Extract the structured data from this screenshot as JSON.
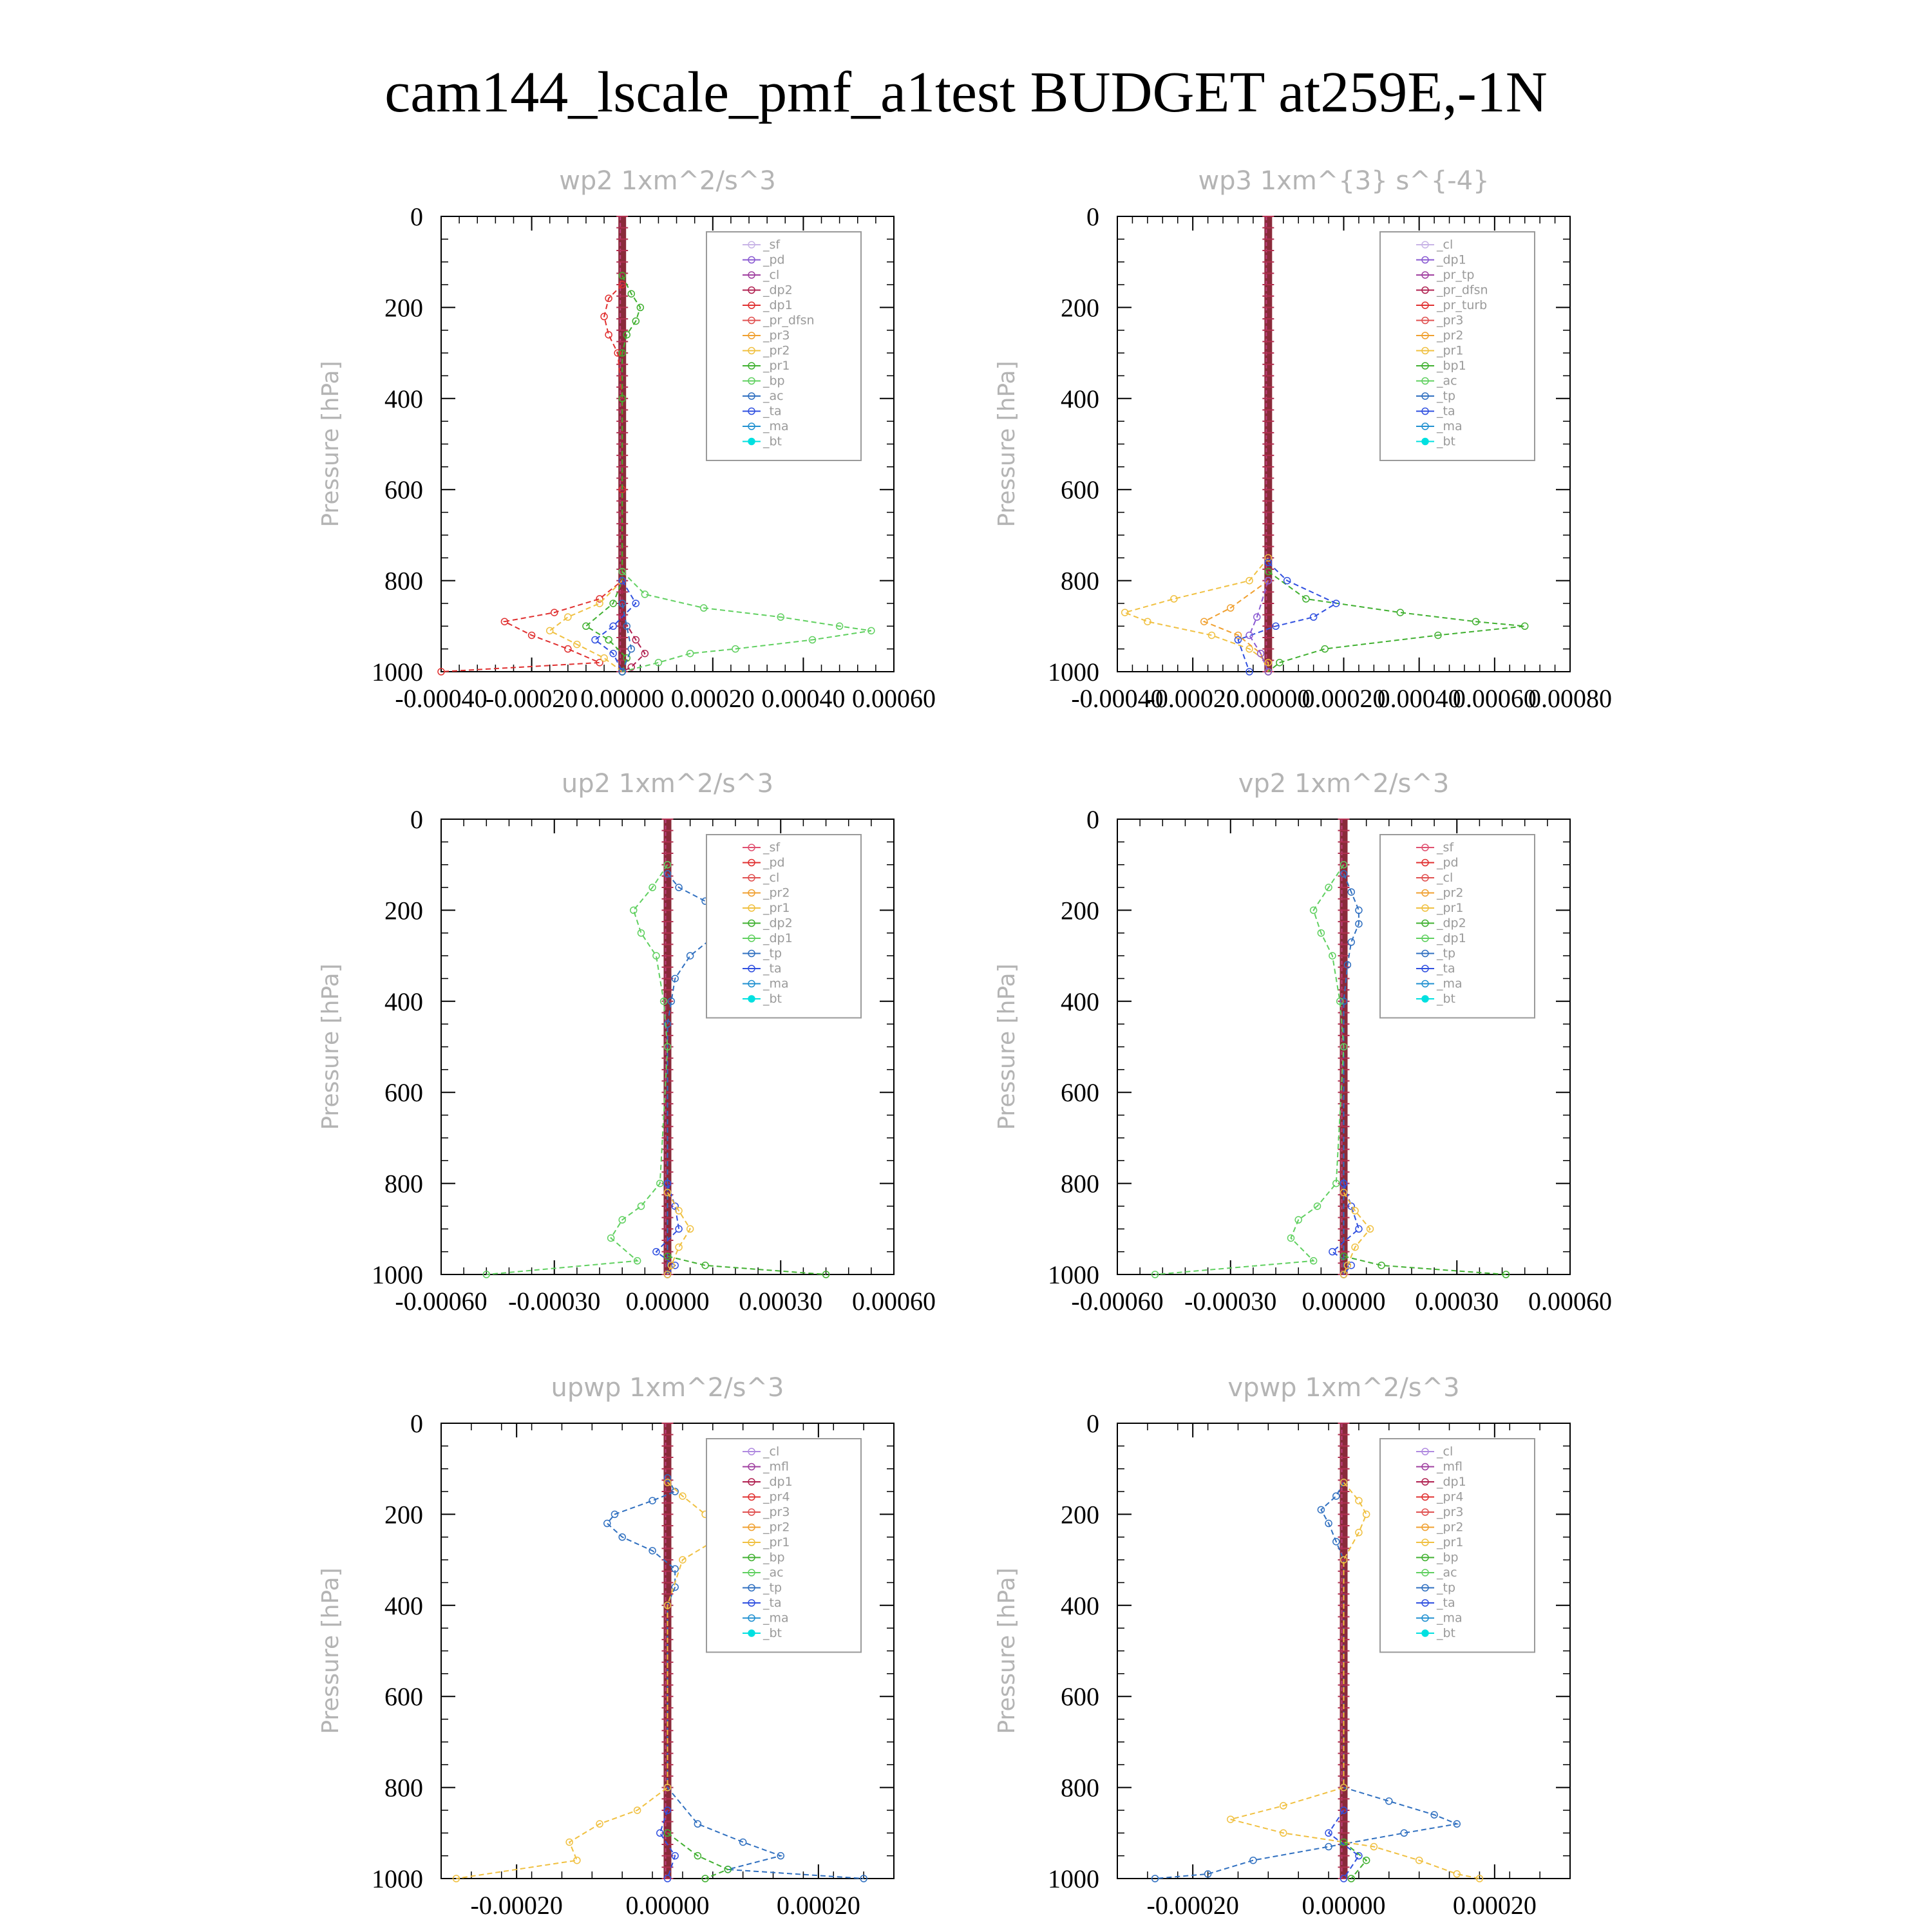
{
  "title": "cam144_lscale_pmf_a1test  BUDGET at259E,-1N",
  "chart_data": [
    {
      "type": "line",
      "title": "wp2   1xm^2/s^3",
      "ylabel": "Pressure [hPa]",
      "ylim": [
        1000,
        0
      ],
      "y_ticks": [
        0,
        200,
        400,
        600,
        800,
        1000
      ],
      "xlim": [
        -0.0004,
        0.0006
      ],
      "x_ticks": [
        -0.0004,
        -0.0002,
        0.0,
        0.0002,
        0.0004,
        0.0006
      ],
      "x_tick_labels": [
        "-0.00040",
        "-0.00020",
        "0.00000",
        "0.00020",
        "0.00040",
        "0.00060"
      ],
      "legend": [
        "_sf",
        "_pd",
        "_cl",
        "_dp2",
        "_dp1",
        "_pr_dfsn",
        "_pr3",
        "_pr2",
        "_pr1",
        "_bp",
        "_ac",
        "_ta",
        "_ma",
        "_bt"
      ],
      "legend_colors": [
        "#c8b4e6",
        "#8a5ad2",
        "#a040a0",
        "#b02050",
        "#e03030",
        "#e05050",
        "#f0a030",
        "#f0c040",
        "#40b030",
        "#60d060",
        "#3070c0",
        "#3050e0",
        "#2090d0",
        "#00e0e0"
      ],
      "series": [
        {
          "name": "_dp1",
          "pressure": [
            150,
            180,
            220,
            260,
            300,
            400,
            600,
            800,
            840,
            870,
            890,
            920,
            950,
            980,
            1000
          ],
          "values": [
            0,
            -3e-05,
            -4e-05,
            -3e-05,
            -1e-05,
            0,
            0,
            0,
            -5e-05,
            -0.00015,
            -0.00026,
            -0.0002,
            -0.00012,
            -5e-05,
            -0.0004
          ]
        },
        {
          "name": "_dp2",
          "pressure": [
            800,
            880,
            930,
            960,
            990,
            1000
          ],
          "values": [
            0,
            0,
            3e-05,
            5e-05,
            2e-05,
            0
          ]
        },
        {
          "name": "_pr1",
          "pressure": [
            130,
            170,
            200,
            230,
            260,
            300,
            400,
            800,
            850,
            900,
            930,
            970,
            1000
          ],
          "values": [
            0,
            2e-05,
            4e-05,
            3e-05,
            1e-05,
            0,
            0,
            0,
            -2e-05,
            -8e-05,
            -3e-05,
            1e-05,
            0
          ]
        },
        {
          "name": "_pr2",
          "pressure": [
            800,
            850,
            880,
            910,
            940,
            970,
            1000
          ],
          "values": [
            0,
            -5e-05,
            -0.00012,
            -0.00016,
            -0.0001,
            -4e-05,
            0
          ]
        },
        {
          "name": "_bp",
          "pressure": [
            780,
            830,
            860,
            880,
            900,
            910,
            930,
            950,
            960,
            980,
            1000
          ],
          "values": [
            0,
            5e-05,
            0.00018,
            0.00035,
            0.00048,
            0.00055,
            0.00042,
            0.00025,
            0.00015,
            8e-05,
            0
          ]
        },
        {
          "name": "_ta",
          "pressure": [
            800,
            850,
            900,
            930,
            960,
            1000
          ],
          "values": [
            0,
            3e-05,
            -2e-05,
            -6e-05,
            -2e-05,
            0
          ]
        },
        {
          "name": "_ac",
          "pressure": [
            850,
            900,
            950,
            1000
          ],
          "values": [
            0,
            1e-05,
            2e-05,
            0
          ]
        }
      ]
    },
    {
      "type": "line",
      "title": "wp3   1xm^{3} s^{-4}",
      "ylabel": "Pressure [hPa]",
      "ylim": [
        1000,
        0
      ],
      "y_ticks": [
        0,
        200,
        400,
        600,
        800,
        1000
      ],
      "xlim": [
        -0.0004,
        0.0008
      ],
      "x_ticks": [
        -0.0004,
        -0.0002,
        0.0,
        0.0002,
        0.0004,
        0.0006,
        0.0008
      ],
      "x_tick_labels": [
        "-0.00040",
        "-0.00020",
        "0.00000",
        "0.00020",
        "0.00040",
        "0.00060",
        "0.00080"
      ],
      "legend": [
        "_cl",
        "_dp1",
        "_pr_tp",
        "_pr_dfsn",
        "_pr_turb",
        "_pr3",
        "_pr2",
        "_pr1",
        "_bp1",
        "_ac",
        "_tp",
        "_ta",
        "_ma",
        "_bt"
      ],
      "legend_colors": [
        "#c8b4e6",
        "#8a5ad2",
        "#a040a0",
        "#b02050",
        "#e03030",
        "#e05050",
        "#f0a030",
        "#f0c040",
        "#40b030",
        "#60d060",
        "#3070c0",
        "#3050e0",
        "#2090d0",
        "#00e0e0"
      ],
      "series": [
        {
          "name": "_pr1",
          "pressure": [
            750,
            800,
            840,
            870,
            890,
            920,
            950,
            980,
            1000
          ],
          "values": [
            0,
            -5e-05,
            -0.00025,
            -0.00038,
            -0.00032,
            -0.00015,
            -5e-05,
            0,
            0
          ]
        },
        {
          "name": "_pr2",
          "pressure": [
            800,
            860,
            890,
            920,
            960,
            1000
          ],
          "values": [
            0,
            -0.0001,
            -0.00017,
            -8e-05,
            -2e-05,
            0
          ]
        },
        {
          "name": "_bp1",
          "pressure": [
            780,
            840,
            870,
            890,
            900,
            920,
            950,
            980,
            1000
          ],
          "values": [
            0,
            0.0001,
            0.00035,
            0.00055,
            0.00068,
            0.00045,
            0.00015,
            3e-05,
            0
          ]
        },
        {
          "name": "_ta",
          "pressure": [
            760,
            800,
            850,
            880,
            900,
            930,
            1000
          ],
          "values": [
            0,
            5e-05,
            0.00018,
            0.00012,
            2e-05,
            -8e-05,
            -5e-05
          ]
        },
        {
          "name": "_dp1",
          "pressure": [
            800,
            880,
            920,
            960,
            1000
          ],
          "values": [
            0,
            -3e-05,
            -5e-05,
            -2e-05,
            0
          ]
        }
      ]
    },
    {
      "type": "line",
      "title": "up2   1xm^2/s^3",
      "ylabel": "Pressure [hPa]",
      "ylim": [
        1000,
        0
      ],
      "y_ticks": [
        0,
        200,
        400,
        600,
        800,
        1000
      ],
      "xlim": [
        -0.0006,
        0.0006
      ],
      "x_ticks": [
        -0.0006,
        -0.0003,
        0.0,
        0.0003,
        0.0006
      ],
      "x_tick_labels": [
        "-0.00060",
        "-0.00030",
        "0.00000",
        "0.00030",
        "0.00060"
      ],
      "legend": [
        "_sf",
        "_pd",
        "_cl",
        "_pr2",
        "_pr1",
        "_dp2",
        "_dp1",
        "_tp",
        "_ta",
        "_ma",
        "_bt"
      ],
      "legend_colors": [
        "#e05070",
        "#e03030",
        "#e05050",
        "#f0a030",
        "#f0c040",
        "#40b030",
        "#60d060",
        "#3070c0",
        "#3050e0",
        "#2090d0",
        "#00e0e0"
      ],
      "series": [
        {
          "name": "_tp",
          "pressure": [
            120,
            150,
            180,
            200,
            230,
            260,
            300,
            350,
            400,
            450,
            800,
            1000
          ],
          "values": [
            0,
            3e-05,
            0.0001,
            0.00016,
            0.00015,
            0.00012,
            6e-05,
            2e-05,
            1e-05,
            0,
            0,
            0
          ]
        },
        {
          "name": "_dp1",
          "pressure": [
            100,
            150,
            200,
            250,
            300,
            400,
            500,
            800,
            850,
            880,
            920,
            970,
            1000
          ],
          "values": [
            0,
            -4e-05,
            -9e-05,
            -7e-05,
            -3e-05,
            -1e-05,
            0,
            -2e-05,
            -7e-05,
            -0.00012,
            -0.00015,
            -8e-05,
            -0.00048
          ]
        },
        {
          "name": "_ta",
          "pressure": [
            800,
            850,
            900,
            950,
            980,
            1000
          ],
          "values": [
            0,
            2e-05,
            3e-05,
            -3e-05,
            2e-05,
            0
          ]
        },
        {
          "name": "_pr1",
          "pressure": [
            820,
            860,
            900,
            940,
            980,
            1000
          ],
          "values": [
            0,
            3e-05,
            6e-05,
            3e-05,
            1e-05,
            0
          ]
        },
        {
          "name": "_dp2",
          "pressure": [
            960,
            980,
            1000
          ],
          "values": [
            0,
            0.0001,
            0.00042
          ]
        }
      ]
    },
    {
      "type": "line",
      "title": "vp2   1xm^2/s^3",
      "ylabel": "Pressure [hPa]",
      "ylim": [
        1000,
        0
      ],
      "y_ticks": [
        0,
        200,
        400,
        600,
        800,
        1000
      ],
      "xlim": [
        -0.0006,
        0.0006
      ],
      "x_ticks": [
        -0.0006,
        -0.0003,
        0.0,
        0.0003,
        0.0006
      ],
      "x_tick_labels": [
        "-0.00060",
        "-0.00030",
        "0.00000",
        "0.00030",
        "0.00060"
      ],
      "legend": [
        "_sf",
        "_pd",
        "_cl",
        "_pr2",
        "_pr1",
        "_dp2",
        "_dp1",
        "_tp",
        "_ta",
        "_ma",
        "_bt"
      ],
      "legend_colors": [
        "#e05070",
        "#e03030",
        "#e05050",
        "#f0a030",
        "#f0c040",
        "#40b030",
        "#60d060",
        "#3070c0",
        "#3050e0",
        "#2090d0",
        "#00e0e0"
      ],
      "series": [
        {
          "name": "_tp",
          "pressure": [
            120,
            160,
            200,
            230,
            270,
            320,
            400,
            800,
            1000
          ],
          "values": [
            0,
            2e-05,
            4e-05,
            4e-05,
            2e-05,
            1e-05,
            0,
            0,
            0
          ]
        },
        {
          "name": "_dp1",
          "pressure": [
            100,
            150,
            200,
            250,
            300,
            400,
            500,
            800,
            850,
            880,
            920,
            970,
            1000
          ],
          "values": [
            0,
            -4e-05,
            -8e-05,
            -6e-05,
            -3e-05,
            -1e-05,
            0,
            -2e-05,
            -7e-05,
            -0.00012,
            -0.00014,
            -8e-05,
            -0.0005
          ]
        },
        {
          "name": "_ta",
          "pressure": [
            800,
            850,
            900,
            950,
            980,
            1000
          ],
          "values": [
            0,
            2e-05,
            4e-05,
            -3e-05,
            2e-05,
            0
          ]
        },
        {
          "name": "_pr1",
          "pressure": [
            820,
            860,
            900,
            940,
            980,
            1000
          ],
          "values": [
            0,
            3e-05,
            7e-05,
            3e-05,
            1e-05,
            0
          ]
        },
        {
          "name": "_dp2",
          "pressure": [
            960,
            980,
            1000
          ],
          "values": [
            0,
            0.0001,
            0.00043
          ]
        }
      ]
    },
    {
      "type": "line",
      "title": "upwp   1xm^2/s^3",
      "ylabel": "Pressure [hPa]",
      "ylim": [
        1000,
        0
      ],
      "y_ticks": [
        0,
        200,
        400,
        600,
        800,
        1000
      ],
      "xlim": [
        -0.0003,
        0.0003
      ],
      "x_ticks": [
        -0.0002,
        0.0,
        0.0002
      ],
      "x_tick_labels": [
        "-0.00020",
        "0.00000",
        "0.00020"
      ],
      "legend": [
        "_cl",
        "_mfl",
        "_dp1",
        "_pr4",
        "_pr3",
        "_pr2",
        "_pr1",
        "_bp",
        "_ac",
        "_tp",
        "_ta",
        "_ma",
        "_bt"
      ],
      "legend_colors": [
        "#b08ae0",
        "#a040a0",
        "#b02050",
        "#e03030",
        "#e05050",
        "#f0a030",
        "#f0c040",
        "#40b030",
        "#60d060",
        "#3070c0",
        "#3050e0",
        "#2090d0",
        "#00e0e0"
      ],
      "series": [
        {
          "name": "_tp",
          "pressure": [
            120,
            150,
            170,
            200,
            220,
            250,
            280,
            320,
            360,
            400,
            800,
            880,
            920,
            950,
            980,
            1000
          ],
          "values": [
            0,
            1e-05,
            -2e-05,
            -7e-05,
            -8e-05,
            -6e-05,
            -2e-05,
            1e-05,
            1e-05,
            0,
            0,
            4e-05,
            0.0001,
            0.00015,
            8e-05,
            0.00026
          ]
        },
        {
          "name": "_pr1",
          "pressure": [
            130,
            160,
            200,
            230,
            260,
            300,
            400,
            800,
            850,
            880,
            920,
            960,
            1000
          ],
          "values": [
            0,
            2e-05,
            5e-05,
            7e-05,
            6e-05,
            2e-05,
            0,
            0,
            -4e-05,
            -9e-05,
            -0.00013,
            -0.00012,
            -0.00028
          ]
        },
        {
          "name": "_bp",
          "pressure": [
            900,
            950,
            980,
            1000
          ],
          "values": [
            0,
            4e-05,
            8e-05,
            5e-05
          ]
        },
        {
          "name": "_ta",
          "pressure": [
            850,
            900,
            950,
            1000
          ],
          "values": [
            0,
            -1e-05,
            1e-05,
            0
          ]
        }
      ]
    },
    {
      "type": "line",
      "title": "vpwp   1xm^2/s^3",
      "ylabel": "Pressure [hPa]",
      "ylim": [
        1000,
        0
      ],
      "y_ticks": [
        0,
        200,
        400,
        600,
        800,
        1000
      ],
      "xlim": [
        -0.0003,
        0.0003
      ],
      "x_ticks": [
        -0.0002,
        0.0,
        0.0002
      ],
      "x_tick_labels": [
        "-0.00020",
        "0.00000",
        "0.00020"
      ],
      "legend": [
        "_cl",
        "_mfl",
        "_dp1",
        "_pr4",
        "_pr3",
        "_pr2",
        "_pr1",
        "_bp",
        "_ac",
        "_tp",
        "_ta",
        "_ma",
        "_bt"
      ],
      "legend_colors": [
        "#b08ae0",
        "#a040a0",
        "#b02050",
        "#e03030",
        "#e05050",
        "#f0a030",
        "#f0c040",
        "#40b030",
        "#60d060",
        "#3070c0",
        "#3050e0",
        "#2090d0",
        "#00e0e0"
      ],
      "series": [
        {
          "name": "_tp",
          "pressure": [
            130,
            160,
            190,
            220,
            260,
            300,
            800,
            830,
            860,
            880,
            900,
            930,
            960,
            990,
            1000
          ],
          "values": [
            0,
            -1e-05,
            -3e-05,
            -2e-05,
            -1e-05,
            0,
            0,
            6e-05,
            0.00012,
            0.00015,
            8e-05,
            -2e-05,
            -0.00012,
            -0.00018,
            -0.00025
          ]
        },
        {
          "name": "_pr1",
          "pressure": [
            130,
            170,
            200,
            240,
            300,
            800,
            840,
            870,
            900,
            930,
            960,
            990,
            1000
          ],
          "values": [
            0,
            2e-05,
            3e-05,
            2e-05,
            0,
            0,
            -8e-05,
            -0.00015,
            -8e-05,
            4e-05,
            0.0001,
            0.00015,
            0.00018
          ]
        },
        {
          "name": "_ta",
          "pressure": [
            850,
            900,
            950,
            1000
          ],
          "values": [
            0,
            -2e-05,
            2e-05,
            0
          ]
        },
        {
          "name": "_bp",
          "pressure": [
            920,
            960,
            1000
          ],
          "values": [
            0,
            3e-05,
            1e-05
          ]
        }
      ]
    }
  ]
}
